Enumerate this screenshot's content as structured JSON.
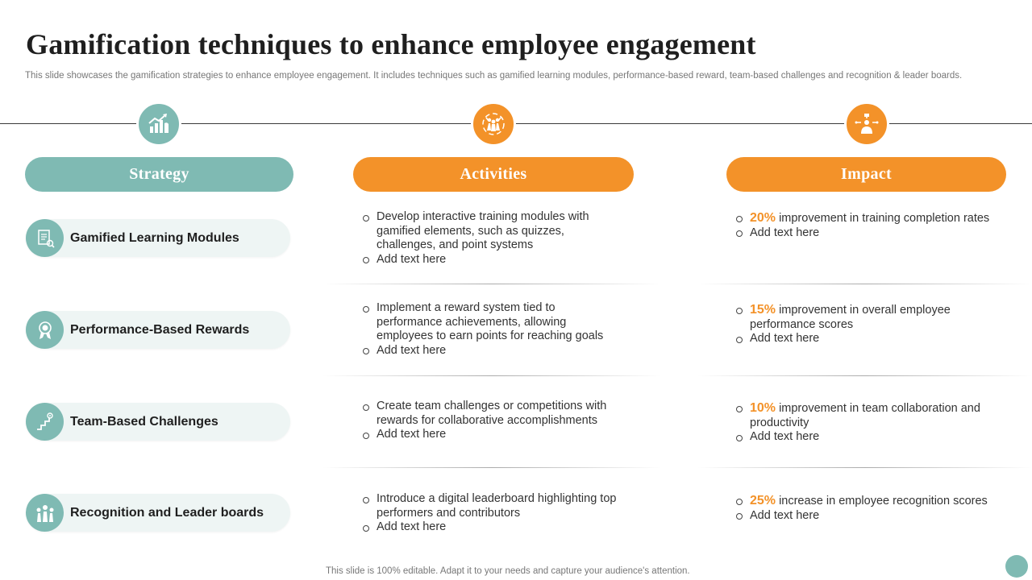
{
  "title": "Gamification techniques to enhance employee engagement",
  "subtitle": "This slide showcases the gamification strategies to enhance employee engagement. It includes techniques such as gamified learning modules, performance-based reward, team-based challenges and recognition & leader boards.",
  "colors": {
    "teal": "#7fbab3",
    "orange": "#f39229"
  },
  "headers": {
    "strategy": "Strategy",
    "activities": "Activities",
    "impact": "Impact"
  },
  "header_icons": {
    "strategy": "growth-chart-icon",
    "activities": "team-celebration-icon",
    "impact": "presenter-icon"
  },
  "rows": [
    {
      "strategy": "Gamified Learning Modules",
      "icon": "learning-document-icon",
      "activities": [
        "Develop interactive training modules with gamified elements, such as quizzes, challenges, and point systems",
        "Add text here"
      ],
      "impact_pct": "20%",
      "impact_text": "improvement in training completion rates",
      "impact_extra": "Add text here"
    },
    {
      "strategy": "Performance-Based Rewards",
      "icon": "award-medal-icon",
      "activities": [
        "Implement a reward system tied to performance achievements, allowing employees to earn points for reaching goals",
        "Add text here"
      ],
      "impact_pct": "15%",
      "impact_text": "improvement in overall employee performance scores",
      "impact_extra": "Add text here"
    },
    {
      "strategy": "Team-Based Challenges",
      "icon": "stairs-goal-icon",
      "activities": [
        "Create team challenges or competitions with rewards for collaborative accomplishments",
        "Add text here"
      ],
      "impact_pct": "10%",
      "impact_text": "improvement in team collaboration and productivity",
      "impact_extra": "Add text here"
    },
    {
      "strategy": "Recognition and Leader boards",
      "icon": "team-recognition-icon",
      "activities": [
        "Introduce a digital leaderboard highlighting top performers and contributors",
        "Add text here"
      ],
      "impact_pct": "25%",
      "impact_text": "increase in employee recognition scores",
      "impact_extra": "Add text here"
    }
  ],
  "footer": "This slide is 100% editable. Adapt it to your needs and capture your audience's attention."
}
